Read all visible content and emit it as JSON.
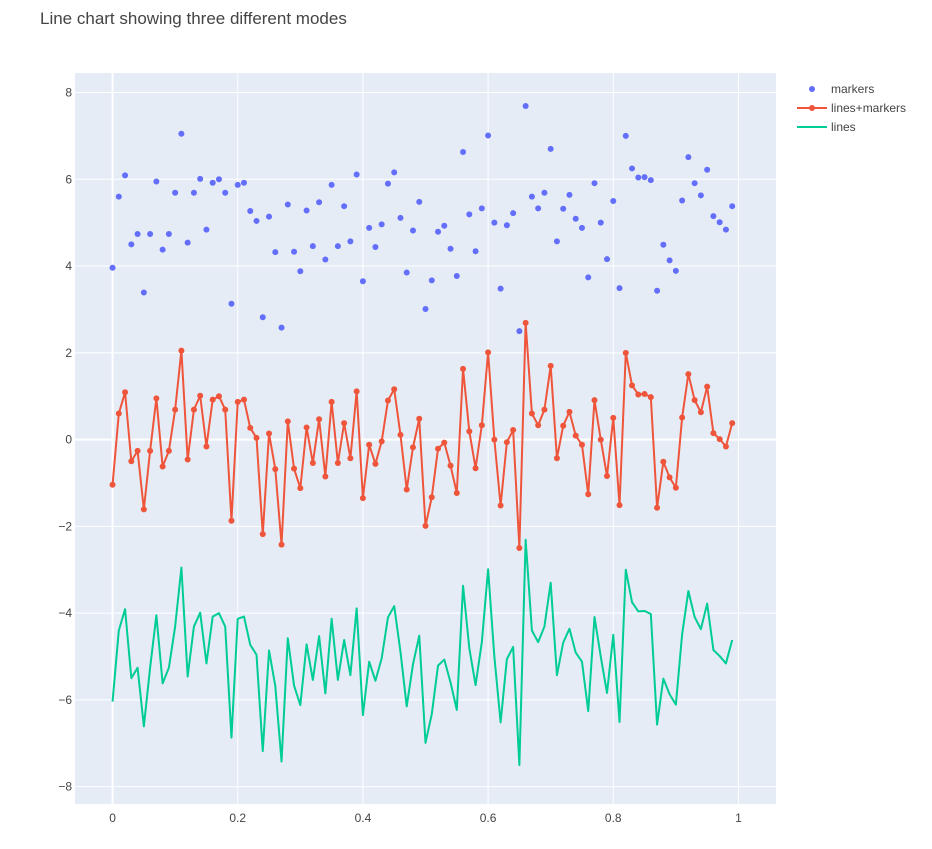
{
  "colors": {
    "plot_bg": "#E5ECF6",
    "grid": "#FFFFFF",
    "markers": "#636EFA",
    "lines_markers": "#EF553B",
    "lines": "#00CC96",
    "text": "#444444"
  },
  "chart_data": {
    "type": "line",
    "title": "Line chart showing three different modes",
    "xlabel": "",
    "ylabel": "",
    "xlim": [
      -0.06,
      1.06
    ],
    "ylim": [
      -8.4,
      8.45
    ],
    "grid": true,
    "legend_position": "top-right",
    "x_ticks": [
      0,
      0.2,
      0.4,
      0.6,
      0.8,
      1
    ],
    "x_tick_labels": [
      "0",
      "0.2",
      "0.4",
      "0.6",
      "0.8",
      "1"
    ],
    "y_ticks": [
      -8,
      -6,
      -4,
      -2,
      0,
      2,
      4,
      6,
      8
    ],
    "y_tick_labels": [
      "−8",
      "−6",
      "−4",
      "−2",
      "0",
      "2",
      "4",
      "6",
      "8"
    ],
    "x_count": 101,
    "x_start": 0,
    "x_end": 1,
    "series": [
      {
        "name": "markers",
        "mode": "markers",
        "color": "#636EFA",
        "values": [
          3.96,
          5.6,
          6.09,
          4.5,
          4.74,
          3.39,
          4.74,
          5.95,
          4.38,
          4.74,
          5.69,
          7.05,
          4.54,
          5.69,
          6.01,
          4.84,
          5.92,
          6.0,
          5.69,
          3.13,
          5.87,
          5.92,
          5.27,
          5.04,
          2.82,
          5.14,
          4.32,
          2.58,
          5.42,
          4.33,
          3.88,
          5.28,
          4.46,
          5.47,
          4.15,
          5.87,
          4.46,
          5.38,
          4.57,
          6.11,
          3.65,
          4.88,
          4.44,
          4.96,
          5.9,
          6.16,
          5.11,
          3.85,
          4.82,
          5.48,
          3.01,
          3.67,
          4.79,
          4.93,
          4.4,
          3.77,
          6.63,
          5.19,
          4.34,
          5.33,
          7.01,
          5.0,
          3.48,
          4.94,
          5.22,
          2.5,
          7.69,
          5.6,
          5.33,
          5.69,
          6.7,
          4.57,
          5.32,
          5.64,
          5.09,
          4.88,
          3.74,
          5.91,
          5.0,
          4.16,
          5.5,
          3.49,
          7.0,
          6.25,
          6.04,
          6.05,
          5.98,
          3.43,
          4.49,
          4.13,
          3.89,
          5.51,
          6.51,
          5.91,
          5.63,
          6.22,
          5.15,
          5.01,
          4.84,
          5.38
        ]
      },
      {
        "name": "lines+markers",
        "mode": "lines+markers",
        "color": "#EF553B",
        "values": [
          -1.04,
          0.6,
          1.09,
          -0.5,
          -0.26,
          -1.61,
          -0.26,
          0.95,
          -0.62,
          -0.26,
          0.69,
          2.05,
          -0.46,
          0.69,
          1.01,
          -0.16,
          0.92,
          1.0,
          0.69,
          -1.87,
          0.87,
          0.92,
          0.27,
          0.04,
          -2.18,
          0.14,
          -0.68,
          -2.42,
          0.42,
          -0.67,
          -1.12,
          0.28,
          -0.54,
          0.47,
          -0.85,
          0.87,
          -0.54,
          0.38,
          -0.43,
          1.11,
          -1.35,
          -0.12,
          -0.56,
          -0.04,
          0.9,
          1.16,
          0.11,
          -1.15,
          -0.18,
          0.48,
          -1.99,
          -1.33,
          -0.21,
          -0.07,
          -0.6,
          -1.23,
          1.63,
          0.19,
          -0.66,
          0.33,
          2.01,
          0.0,
          -1.52,
          -0.06,
          0.22,
          -2.5,
          2.69,
          0.6,
          0.33,
          0.69,
          1.7,
          -0.43,
          0.32,
          0.64,
          0.09,
          -0.12,
          -1.26,
          0.91,
          0.0,
          -0.84,
          0.5,
          -1.51,
          2.0,
          1.25,
          1.04,
          1.05,
          0.98,
          -1.57,
          -0.51,
          -0.87,
          -1.11,
          0.51,
          1.51,
          0.91,
          0.63,
          1.22,
          0.15,
          0.01,
          -0.16,
          0.38
        ]
      },
      {
        "name": "lines",
        "mode": "lines",
        "color": "#00CC96",
        "values": [
          -6.04,
          -4.4,
          -3.91,
          -5.5,
          -5.26,
          -6.61,
          -5.26,
          -4.05,
          -5.62,
          -5.26,
          -4.31,
          -2.95,
          -5.46,
          -4.31,
          -3.99,
          -5.16,
          -4.08,
          -4.0,
          -4.31,
          -6.87,
          -4.13,
          -4.08,
          -4.73,
          -4.96,
          -7.18,
          -4.86,
          -5.68,
          -7.42,
          -4.58,
          -5.67,
          -6.12,
          -4.72,
          -5.54,
          -4.53,
          -5.85,
          -4.13,
          -5.54,
          -4.62,
          -5.43,
          -3.89,
          -6.35,
          -5.12,
          -5.56,
          -5.04,
          -4.1,
          -3.84,
          -4.89,
          -6.15,
          -5.18,
          -4.52,
          -6.99,
          -6.33,
          -5.21,
          -5.07,
          -5.6,
          -6.23,
          -3.37,
          -4.81,
          -5.66,
          -4.67,
          -2.99,
          -5.0,
          -6.52,
          -5.06,
          -4.78,
          -7.5,
          -2.31,
          -4.4,
          -4.67,
          -4.31,
          -3.3,
          -5.43,
          -4.68,
          -4.36,
          -4.91,
          -5.12,
          -6.26,
          -4.09,
          -5.0,
          -5.84,
          -4.5,
          -6.51,
          -3.0,
          -3.75,
          -3.96,
          -3.95,
          -4.02,
          -6.57,
          -5.51,
          -5.87,
          -6.11,
          -4.49,
          -3.49,
          -4.09,
          -4.37,
          -3.78,
          -4.85,
          -4.99,
          -5.16,
          -4.62
        ]
      }
    ]
  }
}
